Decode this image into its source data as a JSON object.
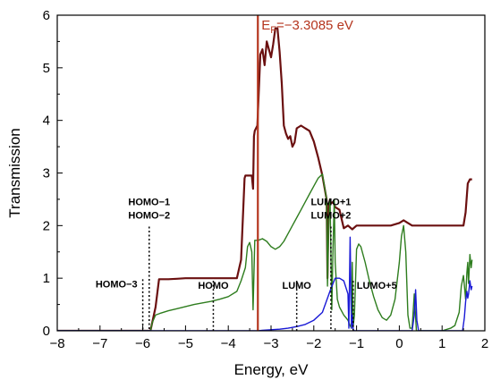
{
  "chart_data": {
    "type": "line",
    "xlabel": "Energy, eV",
    "ylabel": "Transmission",
    "xlim": [
      -8,
      2
    ],
    "ylim": [
      0,
      6
    ],
    "xticks": [
      "−8",
      "−7",
      "−6",
      "−5",
      "−4",
      "−3",
      "−2",
      "−1",
      "0",
      "1",
      "2"
    ],
    "yticks": [
      "0",
      "1",
      "2",
      "3",
      "4",
      "5",
      "6"
    ],
    "grid": false,
    "fermi": {
      "label_main": "E",
      "label_sub": "F",
      "label_value": "=−3.3085 eV",
      "x": -3.3085,
      "color": "#b5361f"
    },
    "series": [
      {
        "color": "#6b1010",
        "x": [
          -8,
          -5.82,
          -5.7,
          -5.62,
          -5.4,
          -5.2,
          -5.0,
          -4.8,
          -4.6,
          -4.4,
          -4.2,
          -4.0,
          -3.8,
          -3.7,
          -3.62,
          -3.6,
          -3.45,
          -3.42,
          -3.4,
          -3.38,
          -3.32,
          -3.3,
          -3.25,
          -3.2,
          -3.15,
          -3.1,
          -3.05,
          -3.0,
          -2.95,
          -2.9,
          -2.85,
          -2.8,
          -2.75,
          -2.7,
          -2.65,
          -2.6,
          -2.55,
          -2.5,
          -2.45,
          -2.4,
          -2.3,
          -2.2,
          -2.1,
          -2.0,
          -1.9,
          -1.8,
          -1.7,
          -1.68,
          -1.65,
          -1.62,
          -1.6,
          -1.55,
          -1.5,
          -1.4,
          -1.3,
          -1.2,
          -1.1,
          -1.0,
          -0.8,
          -0.5,
          -0.2,
          0.0,
          0.1,
          0.2,
          0.3,
          0.5,
          0.8,
          1.0,
          1.3,
          1.5,
          1.55,
          1.6,
          1.65,
          1.7
        ],
        "y": [
          0,
          0,
          0.45,
          0.98,
          0.98,
          0.99,
          1.0,
          1.0,
          1.0,
          1.0,
          1.0,
          1.0,
          1.0,
          1.35,
          2.9,
          2.95,
          2.95,
          2.7,
          3.7,
          3.8,
          3.9,
          4.3,
          5.25,
          5.35,
          5.05,
          5.5,
          5.35,
          5.2,
          5.45,
          5.75,
          5.75,
          5.3,
          4.7,
          3.9,
          3.75,
          3.65,
          3.7,
          3.5,
          3.58,
          3.85,
          3.9,
          3.85,
          3.8,
          3.6,
          3.3,
          2.95,
          2.5,
          1.0,
          2.4,
          2.5,
          2.42,
          2.45,
          2.35,
          2.3,
          1.95,
          2.0,
          1.93,
          2.0,
          2.0,
          2.0,
          2.0,
          2.05,
          2.1,
          2.05,
          2.0,
          2.0,
          2.0,
          2.0,
          2.0,
          2.0,
          2.25,
          2.8,
          2.88,
          2.88
        ]
      },
      {
        "color": "#2e7d1e",
        "x": [
          -8,
          -5.82,
          -5.78,
          -5.7,
          -5.6,
          -5.4,
          -5.2,
          -5.0,
          -4.8,
          -4.6,
          -4.4,
          -4.2,
          -4.0,
          -3.8,
          -3.7,
          -3.6,
          -3.55,
          -3.5,
          -3.45,
          -3.42,
          -3.38,
          -3.35,
          -3.3,
          -3.2,
          -3.1,
          -3.0,
          -2.9,
          -2.8,
          -2.7,
          -2.6,
          -2.5,
          -2.4,
          -2.3,
          -2.2,
          -2.1,
          -2.0,
          -1.9,
          -1.8,
          -1.7,
          -1.68,
          -1.65,
          -1.62,
          -1.6,
          -1.58,
          -1.55,
          -1.52,
          -1.5,
          -1.45,
          -1.4,
          -1.3,
          -1.25,
          -1.2,
          -1.15,
          -1.12,
          -1.1,
          -1.08,
          -1.05,
          -1.0,
          -0.95,
          -0.9,
          -0.8,
          -0.7,
          -0.6,
          -0.5,
          -0.4,
          -0.3,
          -0.2,
          -0.1,
          0.0,
          0.05,
          0.1,
          0.15,
          0.2,
          0.25,
          0.3,
          0.35,
          0.4,
          0.6,
          0.8,
          1.0,
          1.2,
          1.3,
          1.4,
          1.45,
          1.5,
          1.55,
          1.58,
          1.6,
          1.62,
          1.65,
          1.68,
          1.7
        ],
        "y": [
          0,
          0,
          0.15,
          0.3,
          0.33,
          0.38,
          0.42,
          0.46,
          0.5,
          0.53,
          0.56,
          0.6,
          0.65,
          0.75,
          0.95,
          1.2,
          1.6,
          1.68,
          1.5,
          0.4,
          1.72,
          1.72,
          1.72,
          1.75,
          1.7,
          1.6,
          1.55,
          1.6,
          1.7,
          1.85,
          2.0,
          2.15,
          2.3,
          2.45,
          2.6,
          2.75,
          2.9,
          2.98,
          2.5,
          0.85,
          2.1,
          2.5,
          1.5,
          0.4,
          1.6,
          2.5,
          1.3,
          0.6,
          0.45,
          0.3,
          0.25,
          0.2,
          0.1,
          0.05,
          1.3,
          0.08,
          0.3,
          1.55,
          1.65,
          1.6,
          1.3,
          0.95,
          0.65,
          0.4,
          0.25,
          0.2,
          0.3,
          0.6,
          1.3,
          1.8,
          2.0,
          1.5,
          0.3,
          0.05,
          0.05,
          0.7,
          0.0,
          0.0,
          0.0,
          0.0,
          0.05,
          0.1,
          0.35,
          0.85,
          1.05,
          0.6,
          1.1,
          1.3,
          0.9,
          1.45,
          1.2,
          1.35
        ]
      },
      {
        "color": "#1a1ad6",
        "x": [
          -8,
          -3.3,
          -3.2,
          -3.0,
          -2.8,
          -2.6,
          -2.4,
          -2.2,
          -2.0,
          -1.8,
          -1.6,
          -1.5,
          -1.4,
          -1.3,
          -1.2,
          -1.18,
          -1.15,
          -1.12,
          -1.1,
          -1.08,
          -1.05,
          -1.0,
          -0.9,
          -0.5,
          0.0,
          0.3,
          0.35,
          0.38,
          0.41,
          0.45,
          0.5,
          1.0,
          1.3,
          1.48,
          1.52,
          1.55,
          1.58,
          1.6,
          1.62,
          1.65,
          1.68,
          1.7
        ],
        "y": [
          0,
          0,
          0.01,
          0.02,
          0.03,
          0.05,
          0.08,
          0.12,
          0.2,
          0.35,
          0.8,
          1.0,
          1.0,
          0.95,
          0.7,
          0.05,
          1.78,
          0.05,
          0.3,
          0.02,
          0.0,
          0.0,
          0.0,
          0.0,
          0.0,
          0.0,
          0.3,
          0.78,
          0.2,
          0.0,
          0.0,
          0.0,
          0.0,
          0.0,
          0.25,
          0.55,
          0.75,
          0.62,
          0.7,
          0.95,
          0.78,
          0.85
        ]
      }
    ],
    "annotations": [
      {
        "label": "HOMO−3",
        "x": -6.0,
        "ytop": 0.98
      },
      {
        "label": "HOMO−1",
        "label2": "HOMO−2",
        "x": -5.85,
        "ytop": 1.98
      },
      {
        "label": "HOMO",
        "x": -4.35,
        "ytop": 0.95
      },
      {
        "label": "LUMO",
        "x": -2.4,
        "ytop": 0.95
      },
      {
        "label": "LUMO+1",
        "label2": "LUMO+2",
        "x": -1.6,
        "ytop": 1.98
      },
      {
        "label": "LUMO+5",
        "x": -1.08,
        "ytop": 0.95
      }
    ]
  }
}
